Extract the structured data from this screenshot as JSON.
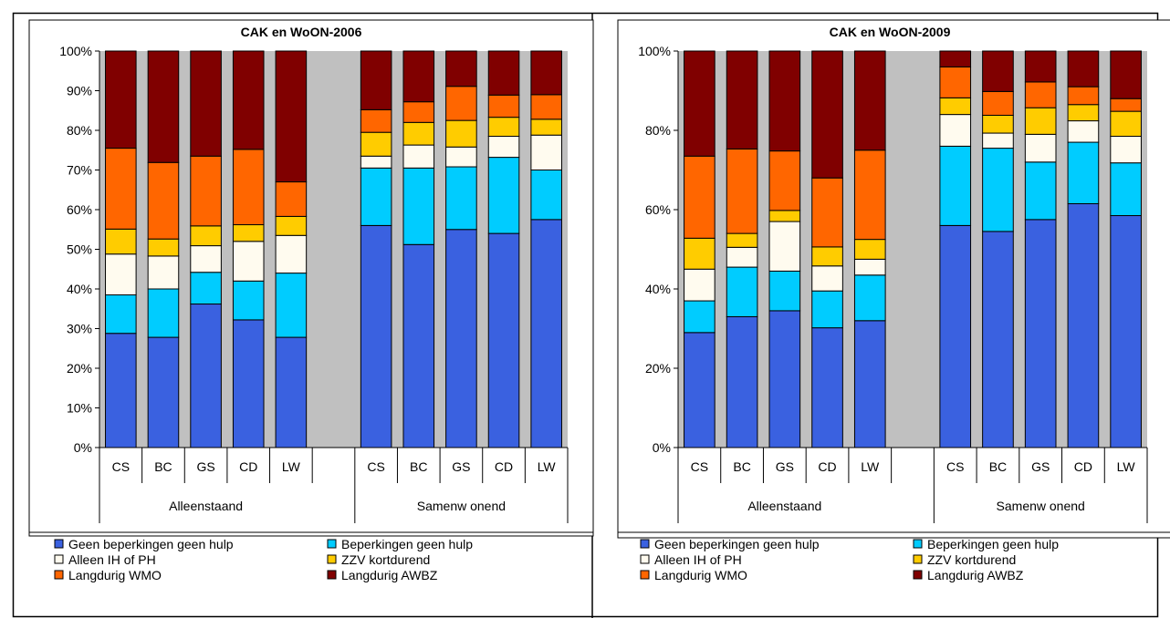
{
  "chart_data": [
    {
      "type": "bar",
      "stacked": true,
      "percent_stacked": true,
      "title": "CAK en WoON-2006",
      "ylim": [
        0,
        100
      ],
      "ytick_format": "percent_1dp",
      "yticks": [
        "0%",
        "10%",
        "20%",
        "30%",
        "40%",
        "50%",
        "60%",
        "70%",
        "80%",
        "90%",
        "100%"
      ],
      "groups": [
        "Alleenstaand",
        "Samenw onend"
      ],
      "categories": [
        "CS",
        "BC",
        "GS",
        "CD",
        "LW",
        "CS",
        "BC",
        "GS",
        "CD",
        "LW"
      ],
      "series": [
        {
          "name": "Geen beperkingen geen hulp",
          "color": "#3A61E0",
          "values": [
            28.8,
            27.8,
            36.2,
            32.2,
            27.8,
            56.0,
            51.2,
            55.0,
            54.0,
            57.5
          ]
        },
        {
          "name": "Beperkingen geen hulp",
          "color": "#00CCFF",
          "values": [
            9.7,
            12.2,
            8.0,
            9.8,
            16.2,
            14.5,
            19.3,
            15.8,
            19.2,
            12.5
          ]
        },
        {
          "name": "Alleen IH of PH",
          "color": "#FFFBEF",
          "values": [
            10.3,
            8.3,
            6.7,
            10.0,
            9.5,
            3.0,
            5.8,
            5.0,
            5.3,
            8.8
          ]
        },
        {
          "name": "ZZV kortdurend",
          "color": "#FFCC00",
          "values": [
            6.3,
            4.3,
            5.0,
            4.2,
            4.8,
            6.0,
            5.7,
            6.7,
            4.8,
            4.0
          ]
        },
        {
          "name": "Langdurig WMO",
          "color": "#FF6600",
          "values": [
            20.4,
            19.3,
            17.6,
            19.0,
            8.7,
            5.7,
            5.2,
            8.6,
            5.6,
            6.2
          ]
        },
        {
          "name": "Langdurig AWBZ",
          "color": "#800000",
          "values": [
            24.5,
            28.1,
            26.5,
            24.8,
            33.0,
            14.8,
            12.8,
            8.9,
            11.1,
            11.0
          ]
        }
      ],
      "legend_position": "bottom",
      "plot_background": "#C0C0C0"
    },
    {
      "type": "bar",
      "stacked": true,
      "percent_stacked": true,
      "title": "CAK en WoON-2009",
      "ylim": [
        0,
        100
      ],
      "ytick_format": "percent_0dp",
      "yticks": [
        "0%",
        "20%",
        "40%",
        "60%",
        "80%",
        "100%"
      ],
      "groups": [
        "Alleenstaand",
        "Samenw onend"
      ],
      "categories": [
        "CS",
        "BC",
        "GS",
        "CD",
        "LW",
        "CS",
        "BC",
        "GS",
        "CD",
        "LW"
      ],
      "series": [
        {
          "name": "Geen beperkingen geen hulp",
          "color": "#3A61E0",
          "values": [
            29.0,
            33.0,
            34.5,
            30.2,
            32.0,
            56.0,
            54.5,
            57.5,
            61.5,
            58.5
          ]
        },
        {
          "name": "Beperkingen geen hulp",
          "color": "#00CCFF",
          "values": [
            8.0,
            12.5,
            10.0,
            9.3,
            11.5,
            20.0,
            21.0,
            14.5,
            15.5,
            13.3
          ]
        },
        {
          "name": "Alleen IH of PH",
          "color": "#FFFBEF",
          "values": [
            8.0,
            5.0,
            12.5,
            6.3,
            4.0,
            8.0,
            3.8,
            7.0,
            5.4,
            6.7
          ]
        },
        {
          "name": "ZZV kortdurend",
          "color": "#FFCC00",
          "values": [
            7.8,
            3.5,
            2.8,
            4.8,
            5.0,
            4.2,
            4.5,
            6.7,
            4.1,
            6.3
          ]
        },
        {
          "name": "Langdurig WMO",
          "color": "#FF6600",
          "values": [
            20.7,
            21.3,
            15.0,
            17.4,
            22.5,
            7.8,
            6.0,
            6.5,
            4.5,
            3.2
          ]
        },
        {
          "name": "Langdurig AWBZ",
          "color": "#800000",
          "values": [
            26.5,
            24.7,
            25.2,
            32.0,
            25.0,
            4.0,
            10.2,
            7.8,
            9.0,
            12.0
          ]
        }
      ],
      "legend_position": "bottom",
      "plot_background": "#C0C0C0"
    }
  ]
}
